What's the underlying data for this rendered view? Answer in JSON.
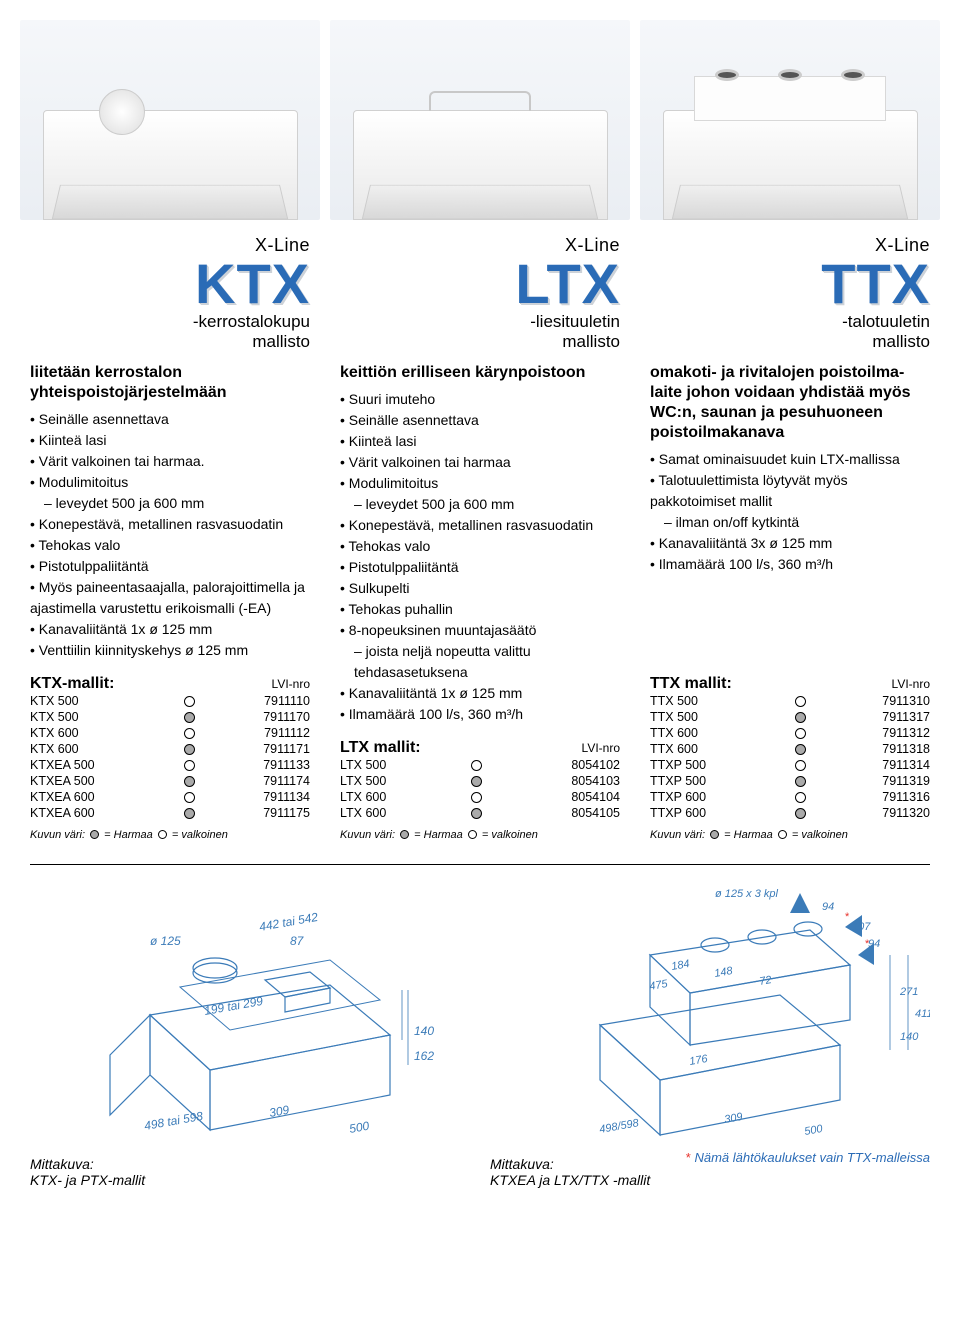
{
  "colors": {
    "brand_blue": "#2a6bb6",
    "text": "#000000",
    "star_red": "#e7312a",
    "dim_line": "#3b7bb8",
    "bg": "#ffffff"
  },
  "hero_count": 3,
  "columns": [
    {
      "xline": "X-Line",
      "code": "KTX",
      "sub1": "-kerrostalokupu",
      "sub2": "mallisto",
      "lead": "liitetään kerrostalon yhteispoistojärjestelmään",
      "features": [
        {
          "t": "Seinälle asennettava"
        },
        {
          "t": "Kiinteä lasi"
        },
        {
          "t": "Värit valkoinen tai harmaa."
        },
        {
          "t": "Modulimitoitus"
        },
        {
          "t": "– leveydet 500 ja 600 mm",
          "sub": true
        },
        {
          "t": "Konepestävä, metallinen rasvasuodatin"
        },
        {
          "t": "Tehokas valo"
        },
        {
          "t": "Pistotulppaliitäntä"
        },
        {
          "t": "Myös paineentasaajalla, palora­joittimella ja ajastimella varustettu erikoismalli (-EA)"
        },
        {
          "t": "Kanavaliitäntä 1x ø 125 mm"
        },
        {
          "t": "Venttiilin kiinnityskehys ø 125 mm"
        }
      ],
      "table_title": "KTX-mallit:",
      "lvi": "LVI-nro",
      "rows": [
        {
          "name": "KTX 500",
          "grey": false,
          "num": "7911110"
        },
        {
          "name": "KTX 500",
          "grey": true,
          "num": "7911170"
        },
        {
          "name": "KTX 600",
          "grey": false,
          "num": "7911112"
        },
        {
          "name": "KTX 600",
          "grey": true,
          "num": "7911171"
        },
        {
          "name": "KTXEA 500",
          "grey": false,
          "num": "7911133"
        },
        {
          "name": "KTXEA 500",
          "grey": true,
          "num": "7911174"
        },
        {
          "name": "KTXEA 600",
          "grey": false,
          "num": "7911134"
        },
        {
          "name": "KTXEA 600",
          "grey": true,
          "num": "7911175"
        }
      ],
      "legend_pre": "Kuvun väri: ",
      "legend_grey": " = Harmaa ",
      "legend_white": " = valkoinen"
    },
    {
      "xline": "X-Line",
      "code": "LTX",
      "sub1": "-liesituuletin",
      "sub2": "mallisto",
      "lead": "keittiön erilliseen kärynpoistoon",
      "features": [
        {
          "t": "Suuri imuteho"
        },
        {
          "t": "Seinälle asennettava"
        },
        {
          "t": "Kiinteä lasi"
        },
        {
          "t": "Värit valkoinen tai harmaa"
        },
        {
          "t": "Modulimitoitus"
        },
        {
          "t": "– leveydet 500 ja 600 mm",
          "sub": true
        },
        {
          "t": "Konepestävä, metallinen rasvasuodatin"
        },
        {
          "t": "Tehokas valo"
        },
        {
          "t": "Pistotulppaliitäntä"
        },
        {
          "t": "Sulkupelti"
        },
        {
          "t": "Tehokas puhallin"
        },
        {
          "t": "8-nopeuksinen muuntajasäätö"
        },
        {
          "t": "– joista neljä nopeutta valittu tehdasasetuksena",
          "sub": true
        },
        {
          "t": "Kanavaliitäntä 1x ø 125 mm"
        },
        {
          "t": "Ilmamäärä 100 l/s, 360 m³/h"
        }
      ],
      "table_title": "LTX mallit:",
      "lvi": "LVI-nro",
      "rows": [
        {
          "name": "LTX 500",
          "grey": false,
          "num": "8054102"
        },
        {
          "name": "LTX 500",
          "grey": true,
          "num": "8054103"
        },
        {
          "name": "LTX 600",
          "grey": false,
          "num": "8054104"
        },
        {
          "name": "LTX 600",
          "grey": true,
          "num": "8054105"
        }
      ],
      "legend_pre": "Kuvun väri: ",
      "legend_grey": " = Harmaa ",
      "legend_white": " = valkoinen"
    },
    {
      "xline": "X-Line",
      "code": "TTX",
      "sub1": "-talotuuletin",
      "sub2": "mallisto",
      "lead": "omakoti- ja rivitalojen poistoilma­laite johon voidaan yhdistää myös WC:n, saunan ja pesuhuoneen poistoilmakanava",
      "features": [
        {
          "t": "Samat ominaisuudet kuin LTX-mallissa"
        },
        {
          "t": "Talotuulettimista löytyvät myös pakkotoimiset mallit"
        },
        {
          "t": "– ilman on/off kytkintä",
          "sub": true
        },
        {
          "t": "Kanavaliitäntä 3x ø 125 mm"
        },
        {
          "t": "Ilmamäärä 100 l/s, 360 m³/h"
        }
      ],
      "table_title": "TTX mallit:",
      "lvi": "LVI-nro",
      "rows": [
        {
          "name": "TTX 500",
          "grey": false,
          "num": "7911310"
        },
        {
          "name": "TTX 500",
          "grey": true,
          "num": "7911317"
        },
        {
          "name": "TTX 600",
          "grey": false,
          "num": "7911312"
        },
        {
          "name": "TTX 600",
          "grey": true,
          "num": "7911318"
        },
        {
          "name": "TTXP 500",
          "grey": false,
          "num": "7911314"
        },
        {
          "name": "TTXP 500",
          "grey": true,
          "num": "7911319"
        },
        {
          "name": "TTXP 600",
          "grey": false,
          "num": "7911316"
        },
        {
          "name": "TTXP 600",
          "grey": true,
          "num": "7911320"
        }
      ],
      "legend_pre": "Kuvun väri: ",
      "legend_grey": " = Harmaa ",
      "legend_white": " = valkoinen"
    }
  ],
  "dimA": {
    "caption1": "Mittakuva:",
    "caption2": "KTX- ja PTX-mallit",
    "labels": {
      "d125": "ø 125",
      "w442": "442 tai 542",
      "w199": "199 tai 299",
      "w498": "498 tai 598",
      "d309": "309",
      "d500": "500",
      "h140": "140",
      "h162": "162",
      "h87": "87"
    }
  },
  "dimB": {
    "caption1": "Mittakuva:",
    "caption2": "KTXEA ja LTX/TTX -mallit",
    "labels": {
      "top": "ø 125 x 3 kpl",
      "l184": "184",
      "l148": "148",
      "l72": "72",
      "l475": "475",
      "l94": "94",
      "l107": "107",
      "h271": "271",
      "h140": "140",
      "h411": "411",
      "l176": "176",
      "d309": "309",
      "d500": "500",
      "w498": "498/598"
    },
    "note_star": "*",
    "note": " Nämä lähtökaulukset vain TTX-malleissa"
  }
}
